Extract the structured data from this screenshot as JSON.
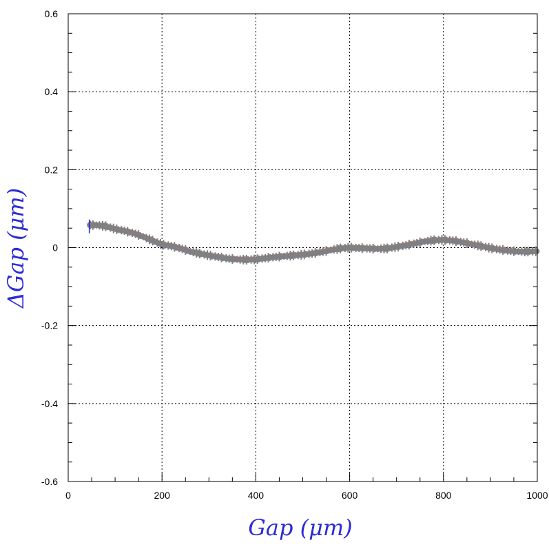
{
  "chart_data": {
    "type": "line",
    "title": "",
    "xlabel": "Gap  (μm)",
    "ylabel": "ΔGap  (μm)",
    "xlim": [
      0,
      1000
    ],
    "ylim": [
      -0.6,
      0.6
    ],
    "x_ticks": [
      0,
      200,
      400,
      600,
      800,
      1000
    ],
    "x_tick_labels": [
      "0",
      "200",
      "400",
      "600",
      "800",
      "1000"
    ],
    "y_ticks": [
      -0.6,
      -0.4,
      -0.2,
      0,
      0.2,
      0.4,
      0.6
    ],
    "y_tick_labels": [
      "-0.6",
      "-0.4",
      "-0.2",
      "0",
      "0.2",
      "0.4",
      "0.6"
    ],
    "grid": true,
    "legend": "none",
    "series": [
      {
        "color": "#808080",
        "x": [
          45,
          60,
          80,
          100,
          120,
          140,
          160,
          180,
          200,
          220,
          240,
          260,
          280,
          300,
          320,
          340,
          360,
          380,
          400,
          420,
          440,
          460,
          480,
          500,
          520,
          540,
          560,
          580,
          600,
          620,
          640,
          660,
          680,
          700,
          720,
          740,
          760,
          780,
          800,
          820,
          840,
          860,
          880,
          900,
          920,
          940,
          960,
          980,
          1000
        ],
        "y": [
          0.058,
          0.058,
          0.055,
          0.048,
          0.043,
          0.037,
          0.028,
          0.018,
          0.008,
          0.004,
          -0.002,
          -0.01,
          -0.015,
          -0.02,
          -0.024,
          -0.028,
          -0.03,
          -0.031,
          -0.03,
          -0.027,
          -0.024,
          -0.022,
          -0.02,
          -0.018,
          -0.015,
          -0.011,
          -0.006,
          -0.002,
          0.0,
          -0.001,
          -0.002,
          -0.003,
          -0.002,
          0.002,
          0.006,
          0.011,
          0.016,
          0.019,
          0.02,
          0.018,
          0.014,
          0.009,
          0.004,
          -0.001,
          -0.005,
          -0.008,
          -0.01,
          -0.01,
          -0.009
        ]
      }
    ],
    "noise_colors": [
      "#d62020",
      "#20a020",
      "#2020d0"
    ]
  }
}
